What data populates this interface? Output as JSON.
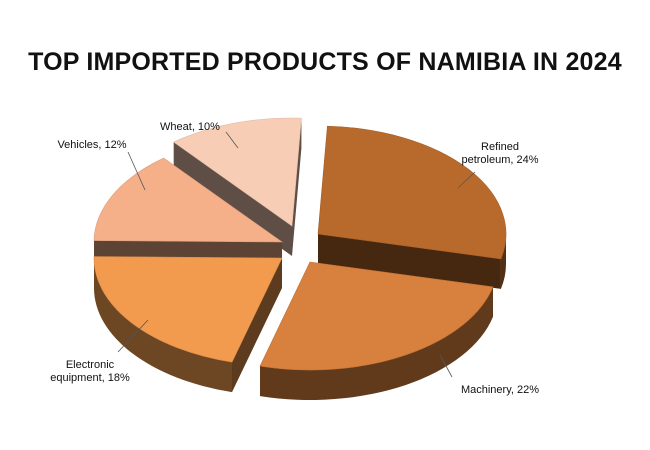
{
  "chart_data": {
    "type": "pie",
    "title": "TOP IMPORTED PRODUCTS OF NAMIBIA IN 2024",
    "slices": [
      {
        "name": "Refined petroleum",
        "value": 24,
        "label_lines": [
          "Refined",
          "petroleum, 24%"
        ],
        "color": "#b86a2c"
      },
      {
        "name": "Machinery",
        "value": 22,
        "label_lines": [
          "Machinery, 22%"
        ],
        "color": "#d8803d"
      },
      {
        "name": "Electronic equipment",
        "value": 18,
        "label_lines": [
          "Electronic",
          "equipment, 18%"
        ],
        "color": "#f29b4e"
      },
      {
        "name": "Vehicles",
        "value": 12,
        "label_lines": [
          "Vehicles, 12%"
        ],
        "color": "#f5b08a"
      },
      {
        "name": "Wheat",
        "value": 10,
        "label_lines": [
          "Wheat, 10%"
        ],
        "color": "#f7cdb5"
      }
    ],
    "style": "3d-exploded-pie",
    "legend": "none"
  }
}
